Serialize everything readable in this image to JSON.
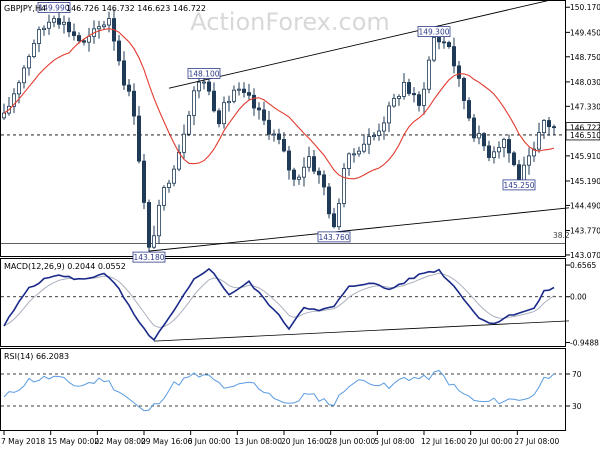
{
  "header": {
    "symbol": "GBPJPY,H4",
    "ohlc": "146.726 146.732 146.623 146.722"
  },
  "watermark": "ActionForex.com",
  "colors": {
    "candle": "#1f3b57",
    "ma": "#e23b2e",
    "macd": "#1a2a8a",
    "signal": "#aab0bd",
    "rsi": "#5a9be0",
    "trendline": "#000000",
    "price_box_border": "#2e3c8a",
    "price_box_text": "#2e3c8a",
    "watermark": "#d8d8d8"
  },
  "chart_data": [
    {
      "type": "candlestick",
      "panel": "price",
      "title": "GBPJPY,H4",
      "ylim": [
        143.04,
        150.32
      ],
      "y_ticks": [
        "150.170",
        "149.450",
        "148.750",
        "148.030",
        "147.330",
        "146.722",
        "146.510",
        "145.910",
        "145.190",
        "144.490",
        "143.770",
        "143.070"
      ],
      "current_price": 146.722,
      "reference_price": 146.51,
      "ma_label_current": 146.51,
      "fib_label": "38.2",
      "fib_level": 143.4,
      "x_ticks": [
        "7 May 2018",
        "15 May 00:00",
        "22 May 08:00",
        "29 May 16:00",
        "6 Jun 00:00",
        "13 Jun 08:00",
        "20 Jun 16:00",
        "28 Jun 00:00",
        "5 Jul 08:00",
        "12 Jul 16:00",
        "20 Jul 00:00",
        "27 Jul 08:00"
      ],
      "anchors": [
        {
          "i": 0,
          "p": 147.0
        },
        {
          "i": 6,
          "p": 149.2
        },
        {
          "i": 10,
          "p": 149.99
        },
        {
          "i": 16,
          "p": 149.1
        },
        {
          "i": 21,
          "p": 149.9
        },
        {
          "i": 24,
          "p": 148.1
        },
        {
          "i": 26,
          "p": 147.2
        },
        {
          "i": 29,
          "p": 143.18
        },
        {
          "i": 32,
          "p": 144.9
        },
        {
          "i": 35,
          "p": 146.1
        },
        {
          "i": 38,
          "p": 147.8
        },
        {
          "i": 40,
          "p": 148.1
        },
        {
          "i": 43,
          "p": 147.0
        },
        {
          "i": 46,
          "p": 147.8
        },
        {
          "i": 49,
          "p": 147.5
        },
        {
          "i": 52,
          "p": 146.9
        },
        {
          "i": 55,
          "p": 146.3
        },
        {
          "i": 58,
          "p": 145.2
        },
        {
          "i": 61,
          "p": 145.9
        },
        {
          "i": 64,
          "p": 145.0
        },
        {
          "i": 66,
          "p": 143.76
        },
        {
          "i": 68,
          "p": 145.6
        },
        {
          "i": 71,
          "p": 146.2
        },
        {
          "i": 74,
          "p": 146.5
        },
        {
          "i": 77,
          "p": 147.2
        },
        {
          "i": 80,
          "p": 148.0
        },
        {
          "i": 83,
          "p": 147.3
        },
        {
          "i": 86,
          "p": 149.3
        },
        {
          "i": 89,
          "p": 149.1
        },
        {
          "i": 91,
          "p": 148.0
        },
        {
          "i": 94,
          "p": 146.6
        },
        {
          "i": 97,
          "p": 146.0
        },
        {
          "i": 100,
          "p": 146.4
        },
        {
          "i": 103,
          "p": 145.25
        },
        {
          "i": 106,
          "p": 146.0
        },
        {
          "i": 108,
          "p": 146.9
        },
        {
          "i": 110,
          "p": 146.72
        }
      ],
      "annotations": [
        {
          "text": "149.990",
          "i": 10,
          "price": 149.99,
          "side": "above"
        },
        {
          "text": "148.100",
          "i": 40,
          "price": 148.1,
          "side": "above"
        },
        {
          "text": "143.180",
          "i": 29,
          "price": 143.18,
          "side": "below"
        },
        {
          "text": "143.760",
          "i": 66,
          "price": 143.76,
          "side": "below"
        },
        {
          "text": "149.300",
          "i": 86,
          "price": 149.3,
          "side": "above"
        },
        {
          "text": "145.250",
          "i": 103,
          "price": 145.25,
          "side": "below"
        }
      ],
      "trendlines": [
        {
          "from": {
            "i": 33,
            "p": 147.85
          },
          "to": {
            "i": 110,
            "p": 150.4
          }
        },
        {
          "from": {
            "i": 29,
            "p": 143.18
          },
          "to": {
            "i": 113,
            "p": 144.42
          }
        }
      ]
    },
    {
      "type": "line",
      "panel": "macd",
      "title": "MACD(12,26,9) 0.2044 0.0552",
      "ylim": [
        -1.0,
        0.72
      ],
      "y_ticks": [
        "0.6565",
        "0.00",
        "-0.9488"
      ],
      "anchors": [
        {
          "i": 0,
          "v": -0.6
        },
        {
          "i": 5,
          "v": 0.2
        },
        {
          "i": 10,
          "v": 0.45
        },
        {
          "i": 16,
          "v": 0.35
        },
        {
          "i": 20,
          "v": 0.5
        },
        {
          "i": 23,
          "v": 0.15
        },
        {
          "i": 27,
          "v": -0.55
        },
        {
          "i": 30,
          "v": -0.9
        },
        {
          "i": 34,
          "v": -0.3
        },
        {
          "i": 38,
          "v": 0.35
        },
        {
          "i": 41,
          "v": 0.6
        },
        {
          "i": 45,
          "v": 0.05
        },
        {
          "i": 49,
          "v": 0.3
        },
        {
          "i": 53,
          "v": -0.15
        },
        {
          "i": 57,
          "v": -0.65
        },
        {
          "i": 60,
          "v": -0.2
        },
        {
          "i": 63,
          "v": -0.3
        },
        {
          "i": 66,
          "v": -0.2
        },
        {
          "i": 69,
          "v": 0.2
        },
        {
          "i": 73,
          "v": 0.3
        },
        {
          "i": 77,
          "v": 0.15
        },
        {
          "i": 80,
          "v": 0.3
        },
        {
          "i": 84,
          "v": 0.5
        },
        {
          "i": 87,
          "v": 0.55
        },
        {
          "i": 91,
          "v": 0.1
        },
        {
          "i": 95,
          "v": -0.45
        },
        {
          "i": 98,
          "v": -0.55
        },
        {
          "i": 102,
          "v": -0.35
        },
        {
          "i": 106,
          "v": -0.25
        },
        {
          "i": 108,
          "v": 0.1
        },
        {
          "i": 110,
          "v": 0.2
        }
      ],
      "trendlines": [
        {
          "from": {
            "i": 30,
            "v": -0.92
          },
          "to": {
            "i": 113,
            "v": -0.5
          }
        }
      ]
    },
    {
      "type": "line",
      "panel": "rsi",
      "title": "RSI(14) 66.2083",
      "ylim": [
        0,
        100
      ],
      "y_ticks": [
        "70",
        "30"
      ],
      "levels": [
        70,
        30
      ],
      "anchors": [
        {
          "i": 0,
          "v": 40
        },
        {
          "i": 5,
          "v": 62
        },
        {
          "i": 10,
          "v": 66
        },
        {
          "i": 15,
          "v": 55
        },
        {
          "i": 20,
          "v": 64
        },
        {
          "i": 24,
          "v": 44
        },
        {
          "i": 28,
          "v": 22
        },
        {
          "i": 30,
          "v": 30
        },
        {
          "i": 34,
          "v": 57
        },
        {
          "i": 38,
          "v": 68
        },
        {
          "i": 41,
          "v": 66
        },
        {
          "i": 45,
          "v": 50
        },
        {
          "i": 49,
          "v": 60
        },
        {
          "i": 53,
          "v": 46
        },
        {
          "i": 57,
          "v": 30
        },
        {
          "i": 60,
          "v": 44
        },
        {
          "i": 63,
          "v": 40
        },
        {
          "i": 66,
          "v": 32
        },
        {
          "i": 69,
          "v": 58
        },
        {
          "i": 73,
          "v": 62
        },
        {
          "i": 77,
          "v": 52
        },
        {
          "i": 80,
          "v": 66
        },
        {
          "i": 84,
          "v": 64
        },
        {
          "i": 87,
          "v": 72
        },
        {
          "i": 91,
          "v": 48
        },
        {
          "i": 95,
          "v": 34
        },
        {
          "i": 98,
          "v": 36
        },
        {
          "i": 102,
          "v": 38
        },
        {
          "i": 106,
          "v": 42
        },
        {
          "i": 108,
          "v": 70
        },
        {
          "i": 110,
          "v": 66
        }
      ]
    }
  ]
}
